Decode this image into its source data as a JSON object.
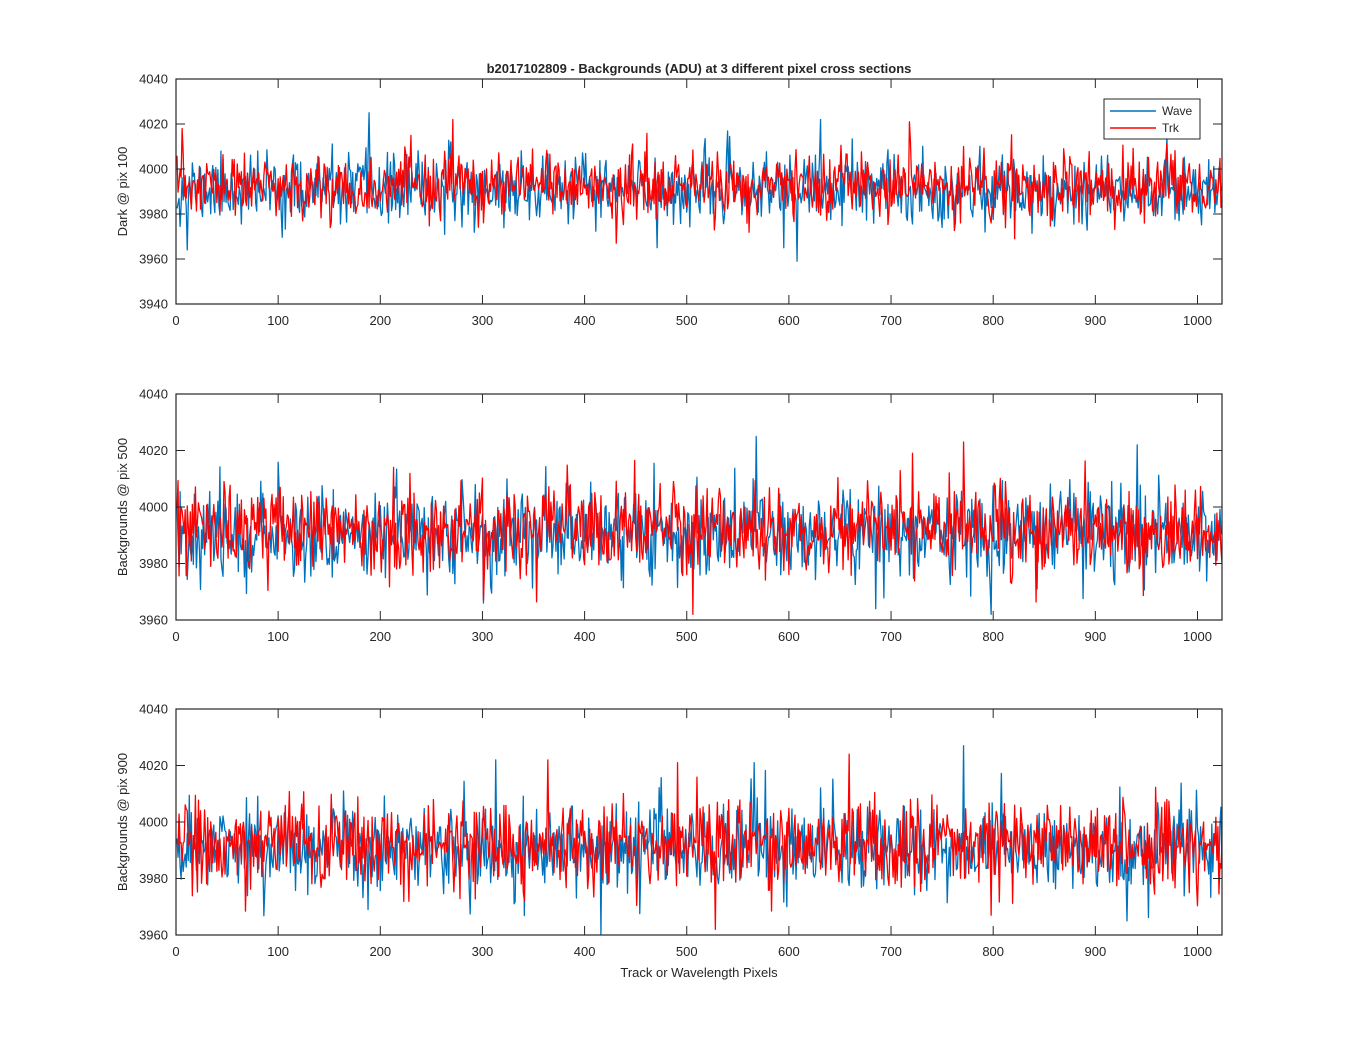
{
  "figure": {
    "title": "b2017102809 - Backgrounds (ADU) at 3 different pixel cross sections",
    "xlabel": "Track or Wavelength Pixels"
  },
  "legend": {
    "placement": "top-right",
    "entries": [
      {
        "name": "Wave",
        "color": "#0072BD"
      },
      {
        "name": "Trk",
        "color": "#FF0000"
      }
    ]
  },
  "colors": {
    "axis": "#262626",
    "background": "#ffffff",
    "wave": "#0072BD",
    "trk": "#FF0000"
  },
  "chart_data": [
    {
      "type": "line",
      "ylabel": "Dark @ pix 100",
      "xlim": [
        0,
        1024
      ],
      "ylim": [
        3940,
        4040
      ],
      "xticks": [
        0,
        100,
        200,
        300,
        400,
        500,
        600,
        700,
        800,
        900,
        1000
      ],
      "yticks": [
        3940,
        3960,
        3980,
        4000,
        4020,
        4040
      ],
      "series": [
        {
          "name": "Wave",
          "color": "#0072BD",
          "n_points": 1024,
          "mean": 3991,
          "sd": 7.5,
          "range": [
            3959,
            4025
          ],
          "seed": 11,
          "extremes": [
            [
              188,
              4025
            ],
            [
              607,
              3959
            ],
            [
              10,
              3964
            ],
            [
              630,
              4022
            ],
            [
              470,
              3965
            ]
          ]
        },
        {
          "name": "Trk",
          "color": "#FF0000",
          "n_points": 1024,
          "mean": 3992,
          "sd": 7.0,
          "range": [
            3967,
            4022
          ],
          "seed": 23,
          "extremes": [
            [
              270,
              4022
            ],
            [
              5,
              4018
            ],
            [
              717,
              4021
            ],
            [
              430,
              3967
            ],
            [
              820,
              3969
            ]
          ]
        }
      ]
    },
    {
      "type": "line",
      "ylabel": "Backgrounds @ pix 500",
      "xlim": [
        0,
        1024
      ],
      "ylim": [
        3960,
        4040
      ],
      "xticks": [
        0,
        100,
        200,
        300,
        400,
        500,
        600,
        700,
        800,
        900,
        1000
      ],
      "yticks": [
        3960,
        3980,
        4000,
        4020,
        4040
      ],
      "series": [
        {
          "name": "Wave",
          "color": "#0072BD",
          "n_points": 1024,
          "mean": 3991,
          "sd": 8.0,
          "range": [
            3962,
            4025
          ],
          "seed": 37,
          "extremes": [
            [
              567,
              4025
            ],
            [
              797,
              3962
            ],
            [
              684,
              3964
            ],
            [
              940,
              4022
            ],
            [
              300,
              3966
            ]
          ]
        },
        {
          "name": "Trk",
          "color": "#FF0000",
          "n_points": 1024,
          "mean": 3992,
          "sd": 7.5,
          "range": [
            3962,
            4023
          ],
          "seed": 53,
          "extremes": [
            [
              505,
              3962
            ],
            [
              770,
              4023
            ],
            [
              300,
              3967
            ],
            [
              720,
              4019
            ],
            [
              212,
              4014
            ]
          ]
        }
      ]
    },
    {
      "type": "line",
      "ylabel": "Backgrounds @ pix 900",
      "xlim": [
        0,
        1024
      ],
      "ylim": [
        3960,
        4040
      ],
      "xticks": [
        0,
        100,
        200,
        300,
        400,
        500,
        600,
        700,
        800,
        900,
        1000
      ],
      "yticks": [
        3960,
        3980,
        4000,
        4020,
        4040
      ],
      "series": [
        {
          "name": "Wave",
          "color": "#0072BD",
          "n_points": 1024,
          "mean": 3991,
          "sd": 8.0,
          "range": [
            3960,
            4027
          ],
          "seed": 71,
          "extremes": [
            [
              770,
              4027
            ],
            [
              415,
              3960
            ],
            [
              312,
              4022
            ],
            [
              930,
              3965
            ],
            [
              565,
              4021
            ]
          ]
        },
        {
          "name": "Trk",
          "color": "#FF0000",
          "n_points": 1024,
          "mean": 3992,
          "sd": 7.5,
          "range": [
            3962,
            4024
          ],
          "seed": 89,
          "extremes": [
            [
              658,
              4024
            ],
            [
              527,
              3962
            ],
            [
              363,
              4022
            ],
            [
              490,
              4021
            ],
            [
              797,
              3967
            ]
          ]
        }
      ]
    }
  ]
}
